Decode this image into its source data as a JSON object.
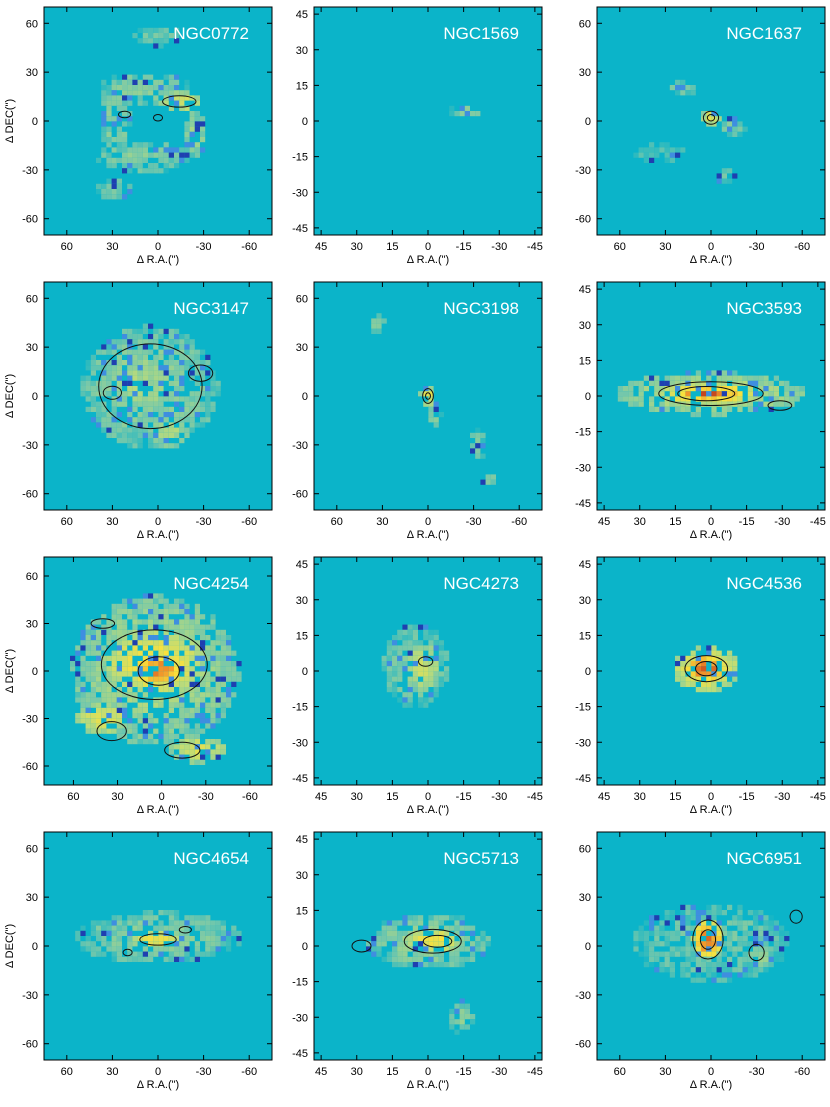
{
  "figure": {
    "background": "#ffffff",
    "map_background": "#0bb4c9",
    "axis_color": "#000000",
    "label_color": "#000000",
    "title_color": "#ffffff"
  },
  "chart_data": [
    {
      "type": "heatmap",
      "title": "NGC0772",
      "xlabel": "Δ R.A.(\")",
      "ylabel": "Δ DEC(\")",
      "xlim": [
        75,
        -75
      ],
      "ylim": [
        -70,
        70
      ],
      "xticks": [
        60,
        30,
        0,
        -30,
        -60
      ],
      "yticks": [
        -60,
        -30,
        0,
        30,
        60
      ],
      "xtick_labels": [
        "60",
        "30",
        "0",
        "-30",
        "-60"
      ],
      "ytick_labels": [
        "-60",
        "-30",
        "0",
        "30",
        "60"
      ],
      "emission": [
        {
          "x": 8,
          "y": 20,
          "rx": 30,
          "ry": 10,
          "level": 0.2
        },
        {
          "x": 10,
          "y": -22,
          "rx": 30,
          "ry": 10,
          "level": 0.2
        },
        {
          "x": 28,
          "y": 0,
          "rx": 10,
          "ry": 22,
          "level": 0.2
        },
        {
          "x": -14,
          "y": 12,
          "rx": 14,
          "ry": 6,
          "level": 0.45
        },
        {
          "x": -24,
          "y": -8,
          "rx": 8,
          "ry": 14,
          "level": 0.25
        },
        {
          "x": 0,
          "y": 52,
          "rx": 16,
          "ry": 6,
          "level": 0.15
        },
        {
          "x": 28,
          "y": -42,
          "rx": 12,
          "ry": 6,
          "level": 0.15
        }
      ],
      "contours": [
        {
          "x": -14,
          "y": 12,
          "rx": 11,
          "ry": 3.5
        },
        {
          "x": 0,
          "y": 2,
          "rx": 3,
          "ry": 2
        },
        {
          "x": 22,
          "y": 4,
          "rx": 4,
          "ry": 2
        }
      ]
    },
    {
      "type": "heatmap",
      "title": "NGC1569",
      "xlabel": "Δ R.A.(\")",
      "ylabel": "",
      "xlim": [
        48,
        -48
      ],
      "ylim": [
        -48,
        48
      ],
      "xticks": [
        45,
        30,
        15,
        0,
        -15,
        -30,
        -45
      ],
      "yticks": [
        -45,
        -30,
        -15,
        0,
        15,
        30,
        45
      ],
      "xtick_labels": [
        "45",
        "30",
        "15",
        "0",
        "-15",
        "-30",
        "-45"
      ],
      "ytick_labels": [
        "-45",
        "-30",
        "-15",
        "0",
        "15",
        "30",
        "45"
      ],
      "emission": [
        {
          "x": -16,
          "y": 4,
          "rx": 7,
          "ry": 3,
          "level": 0.2
        }
      ],
      "contours": []
    },
    {
      "type": "heatmap",
      "title": "NGC1637",
      "xlabel": "Δ R.A.(\")",
      "ylabel": "",
      "xlim": [
        75,
        -75
      ],
      "ylim": [
        -70,
        70
      ],
      "xticks": [
        60,
        30,
        0,
        -30,
        -60
      ],
      "yticks": [
        -60,
        -30,
        0,
        30,
        60
      ],
      "xtick_labels": [
        "60",
        "30",
        "0",
        "-30",
        "-60"
      ],
      "ytick_labels": [
        "-60",
        "-30",
        "0",
        "30",
        "60"
      ],
      "emission": [
        {
          "x": 0,
          "y": 2,
          "rx": 6,
          "ry": 5,
          "level": 0.45
        },
        {
          "x": 20,
          "y": 20,
          "rx": 12,
          "ry": 4,
          "level": 0.15
        },
        {
          "x": -15,
          "y": -4,
          "rx": 8,
          "ry": 6,
          "level": 0.18
        },
        {
          "x": 35,
          "y": -20,
          "rx": 18,
          "ry": 6,
          "level": 0.12
        },
        {
          "x": -10,
          "y": -34,
          "rx": 8,
          "ry": 4,
          "level": 0.15
        }
      ],
      "contours": [
        {
          "x": 0,
          "y": 2,
          "rx": 5,
          "ry": 4
        },
        {
          "x": 0,
          "y": 2,
          "rx": 2.4,
          "ry": 2
        }
      ]
    },
    {
      "type": "heatmap",
      "title": "NGC3147",
      "xlabel": "Δ R.A.(\")",
      "ylabel": "Δ DEC(\")",
      "xlim": [
        75,
        -75
      ],
      "ylim": [
        -70,
        70
      ],
      "xticks": [
        60,
        30,
        0,
        -30,
        -60
      ],
      "yticks": [
        -60,
        -30,
        0,
        30,
        60
      ],
      "xtick_labels": [
        "60",
        "30",
        "0",
        "-30",
        "-60"
      ],
      "ytick_labels": [
        "-60",
        "-30",
        "0",
        "30",
        "60"
      ],
      "emission": [
        {
          "x": 5,
          "y": 5,
          "rx": 45,
          "ry": 38,
          "level": 0.22
        },
        {
          "x": 12,
          "y": 8,
          "rx": 28,
          "ry": 22,
          "level": 0.28
        },
        {
          "x": -8,
          "y": -22,
          "rx": 12,
          "ry": 10,
          "level": 0.3
        }
      ],
      "contours": [
        {
          "x": 5,
          "y": 6,
          "rx": 34,
          "ry": 26
        },
        {
          "x": 30,
          "y": 2,
          "rx": 6,
          "ry": 4
        },
        {
          "x": -28,
          "y": 14,
          "rx": 8,
          "ry": 5
        }
      ]
    },
    {
      "type": "heatmap",
      "title": "NGC3198",
      "xlabel": "Δ R.A.(\")",
      "ylabel": "",
      "xlim": [
        75,
        -75
      ],
      "ylim": [
        -70,
        70
      ],
      "xticks": [
        60,
        30,
        0,
        -30,
        -60
      ],
      "yticks": [
        -60,
        -30,
        0,
        30,
        60
      ],
      "xtick_labels": [
        "60",
        "30",
        "0",
        "-30",
        "-60"
      ],
      "ytick_labels": [
        "-60",
        "-30",
        "0",
        "30",
        "60"
      ],
      "emission": [
        {
          "x": 0,
          "y": 0,
          "rx": 5,
          "ry": 6,
          "level": 0.5
        },
        {
          "x": -4,
          "y": -12,
          "rx": 5,
          "ry": 8,
          "level": 0.2
        },
        {
          "x": 33,
          "y": 44,
          "rx": 5,
          "ry": 6,
          "level": 0.2
        },
        {
          "x": -32,
          "y": -30,
          "rx": 6,
          "ry": 10,
          "level": 0.15
        },
        {
          "x": -40,
          "y": -52,
          "rx": 5,
          "ry": 4,
          "level": 0.2
        }
      ],
      "contours": [
        {
          "x": 0,
          "y": 0,
          "rx": 3.5,
          "ry": 4.5
        },
        {
          "x": 0,
          "y": 0,
          "rx": 1.6,
          "ry": 2
        }
      ]
    },
    {
      "type": "heatmap",
      "title": "NGC3593",
      "xlabel": "Δ R.A.(\")",
      "ylabel": "",
      "xlim": [
        48,
        -48
      ],
      "ylim": [
        -48,
        48
      ],
      "xticks": [
        45,
        30,
        15,
        0,
        -15,
        -30,
        -45
      ],
      "yticks": [
        -45,
        -30,
        -15,
        0,
        15,
        30,
        45
      ],
      "xtick_labels": [
        "45",
        "30",
        "15",
        "0",
        "-15",
        "-30",
        "-45"
      ],
      "ytick_labels": [
        "-45",
        "-30",
        "-15",
        "0",
        "15",
        "30",
        "45"
      ],
      "emission": [
        {
          "x": 0,
          "y": 1,
          "rx": 40,
          "ry": 9,
          "level": 0.35
        },
        {
          "x": 0,
          "y": 1,
          "rx": 22,
          "ry": 5,
          "level": 0.65
        },
        {
          "x": 2,
          "y": 1,
          "rx": 12,
          "ry": 3,
          "level": 0.9
        }
      ],
      "contours": [
        {
          "x": 0,
          "y": 1,
          "rx": 22,
          "ry": 5
        },
        {
          "x": 2,
          "y": 1,
          "rx": 12,
          "ry": 3
        },
        {
          "x": -29,
          "y": -4,
          "rx": 5,
          "ry": 2
        }
      ]
    },
    {
      "type": "heatmap",
      "title": "NGC4254",
      "xlabel": "Δ R.A.(\")",
      "ylabel": "Δ DEC(\")",
      "xlim": [
        80,
        -75
      ],
      "ylim": [
        -72,
        72
      ],
      "xticks": [
        60,
        30,
        0,
        -30,
        -60
      ],
      "yticks": [
        -60,
        -30,
        0,
        30,
        60
      ],
      "xtick_labels": [
        "60",
        "30",
        "0",
        "-30",
        "-60"
      ],
      "ytick_labels": [
        "-60",
        "-30",
        "0",
        "30",
        "60"
      ],
      "emission": [
        {
          "x": 5,
          "y": 0,
          "rx": 58,
          "ry": 48,
          "level": 0.3
        },
        {
          "x": 5,
          "y": 5,
          "rx": 35,
          "ry": 22,
          "level": 0.55
        },
        {
          "x": 2,
          "y": 0,
          "rx": 16,
          "ry": 10,
          "level": 0.8
        },
        {
          "x": 40,
          "y": -30,
          "rx": 18,
          "ry": 10,
          "level": 0.45
        },
        {
          "x": -25,
          "y": -50,
          "rx": 20,
          "ry": 8,
          "level": 0.45
        }
      ],
      "contours": [
        {
          "x": 5,
          "y": 4,
          "rx": 36,
          "ry": 22
        },
        {
          "x": 2,
          "y": 0,
          "rx": 14,
          "ry": 9
        },
        {
          "x": 34,
          "y": -38,
          "rx": 10,
          "ry": 6
        },
        {
          "x": -14,
          "y": -50,
          "rx": 12,
          "ry": 5
        },
        {
          "x": 40,
          "y": 30,
          "rx": 8,
          "ry": 3
        }
      ]
    },
    {
      "type": "heatmap",
      "title": "NGC4273",
      "xlabel": "Δ R.A.(\")",
      "ylabel": "",
      "xlim": [
        48,
        -48
      ],
      "ylim": [
        -48,
        48
      ],
      "xticks": [
        45,
        30,
        15,
        0,
        -15,
        -30,
        -45
      ],
      "yticks": [
        -45,
        -30,
        -15,
        0,
        15,
        30,
        45
      ],
      "xtick_labels": [
        "45",
        "30",
        "15",
        "0",
        "-15",
        "-30",
        "-45"
      ],
      "ytick_labels": [
        "-45",
        "-30",
        "-15",
        "0",
        "15",
        "30",
        "45"
      ],
      "emission": [
        {
          "x": 5,
          "y": 2,
          "rx": 14,
          "ry": 18,
          "level": 0.18
        },
        {
          "x": 2,
          "y": 2,
          "rx": 7,
          "ry": 10,
          "level": 0.4
        }
      ],
      "contours": [
        {
          "x": 1,
          "y": 4,
          "rx": 3,
          "ry": 2
        }
      ]
    },
    {
      "type": "heatmap",
      "title": "NGC4536",
      "xlabel": "Δ R.A.(\")",
      "ylabel": "",
      "xlim": [
        48,
        -48
      ],
      "ylim": [
        -48,
        48
      ],
      "xticks": [
        45,
        30,
        15,
        0,
        -15,
        -30,
        -45
      ],
      "yticks": [
        -45,
        -30,
        -15,
        0,
        15,
        30,
        45
      ],
      "xtick_labels": [
        "45",
        "30",
        "15",
        "0",
        "-15",
        "-30",
        "-45"
      ],
      "ytick_labels": [
        "-45",
        "-30",
        "-15",
        "0",
        "15",
        "30",
        "45"
      ],
      "emission": [
        {
          "x": 2,
          "y": 1,
          "rx": 14,
          "ry": 10,
          "level": 0.55
        },
        {
          "x": 2,
          "y": 1,
          "rx": 9,
          "ry": 6,
          "level": 0.85
        }
      ],
      "contours": [
        {
          "x": 2,
          "y": 1,
          "rx": 9,
          "ry": 5.5
        },
        {
          "x": 2,
          "y": 1,
          "rx": 4.5,
          "ry": 3
        }
      ]
    },
    {
      "type": "heatmap",
      "title": "NGC4654",
      "xlabel": "Δ R.A.(\")",
      "ylabel": "Δ DEC(\")",
      "xlim": [
        75,
        -75
      ],
      "ylim": [
        -70,
        70
      ],
      "xticks": [
        60,
        30,
        0,
        -30,
        -60
      ],
      "yticks": [
        -60,
        -30,
        0,
        30,
        60
      ],
      "xtick_labels": [
        "60",
        "30",
        "0",
        "-30",
        "-60"
      ],
      "ytick_labels": [
        "-60",
        "-30",
        "0",
        "30",
        "60"
      ],
      "emission": [
        {
          "x": 0,
          "y": 5,
          "rx": 55,
          "ry": 16,
          "level": 0.2
        },
        {
          "x": 0,
          "y": 4,
          "rx": 18,
          "ry": 6,
          "level": 0.5
        }
      ],
      "contours": [
        {
          "x": 0,
          "y": 4,
          "rx": 12,
          "ry": 3.5
        },
        {
          "x": -18,
          "y": 10,
          "rx": 4,
          "ry": 2
        },
        {
          "x": 20,
          "y": -4,
          "rx": 3,
          "ry": 2
        }
      ]
    },
    {
      "type": "heatmap",
      "title": "NGC5713",
      "xlabel": "Δ R.A.(\")",
      "ylabel": "",
      "xlim": [
        48,
        -48
      ],
      "ylim": [
        -48,
        48
      ],
      "xticks": [
        45,
        30,
        15,
        0,
        -15,
        -30,
        -45
      ],
      "yticks": [
        -45,
        -30,
        -15,
        0,
        15,
        30,
        45
      ],
      "xtick_labels": [
        "45",
        "30",
        "15",
        "0",
        "-15",
        "-30",
        "-45"
      ],
      "ytick_labels": [
        "-45",
        "-30",
        "-15",
        "0",
        "15",
        "30",
        "45"
      ],
      "emission": [
        {
          "x": 0,
          "y": 2,
          "rx": 26,
          "ry": 12,
          "level": 0.22
        },
        {
          "x": -2,
          "y": 2,
          "rx": 12,
          "ry": 5,
          "level": 0.55
        },
        {
          "x": -14,
          "y": -30,
          "rx": 5,
          "ry": 7,
          "level": 0.2
        }
      ],
      "contours": [
        {
          "x": -2,
          "y": 2,
          "rx": 12,
          "ry": 5
        },
        {
          "x": -4,
          "y": 2,
          "rx": 6,
          "ry": 2.5
        },
        {
          "x": 28,
          "y": 0,
          "rx": 4,
          "ry": 2.5
        }
      ]
    },
    {
      "type": "heatmap",
      "title": "NGC6951",
      "xlabel": "Δ R.A.(\")",
      "ylabel": "",
      "xlim": [
        75,
        -75
      ],
      "ylim": [
        -70,
        70
      ],
      "xticks": [
        60,
        30,
        0,
        -30,
        -60
      ],
      "yticks": [
        -60,
        -30,
        0,
        30,
        60
      ],
      "xtick_labels": [
        "60",
        "30",
        "0",
        "-30",
        "-60"
      ],
      "ytick_labels": [
        "-60",
        "-30",
        "0",
        "30",
        "60"
      ],
      "emission": [
        {
          "x": 0,
          "y": 2,
          "rx": 52,
          "ry": 24,
          "level": 0.15
        },
        {
          "x": 2,
          "y": 4,
          "rx": 10,
          "ry": 12,
          "level": 0.8
        },
        {
          "x": -32,
          "y": -6,
          "rx": 8,
          "ry": 8,
          "level": 0.25
        }
      ],
      "contours": [
        {
          "x": 2,
          "y": 4,
          "rx": 10,
          "ry": 12
        },
        {
          "x": 2,
          "y": 4,
          "rx": 5,
          "ry": 6
        },
        {
          "x": -30,
          "y": -4,
          "rx": 5,
          "ry": 5
        },
        {
          "x": -56,
          "y": 18,
          "rx": 4,
          "ry": 4
        }
      ]
    }
  ]
}
